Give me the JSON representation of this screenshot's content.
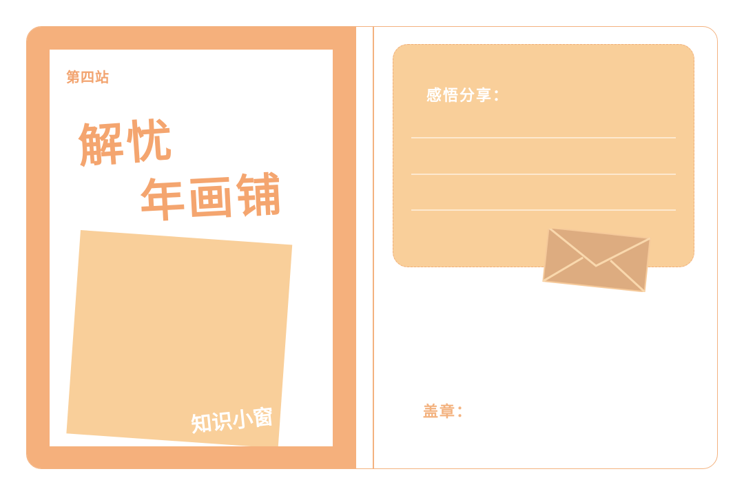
{
  "left": {
    "station": "第四站",
    "title_line1": "解忧",
    "title_line2": "年画铺",
    "photo_caption": "知识小窗"
  },
  "right": {
    "feel_label": "感悟分享：",
    "stamp_label": "盖章："
  },
  "colors": {
    "accent": "#f5b07c",
    "panel_light": "#f9cf9a",
    "envelope": "#ddac80"
  },
  "icons": {
    "envelope": "envelope-icon"
  }
}
